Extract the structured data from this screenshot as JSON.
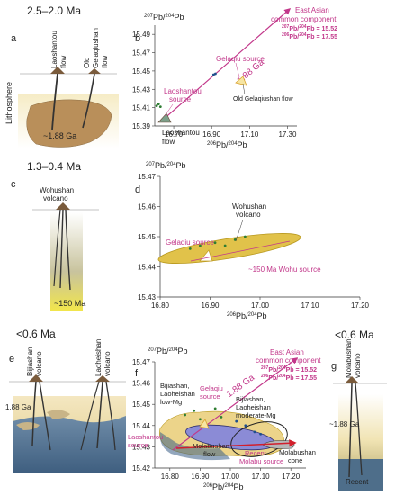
{
  "age_labels": {
    "a": "2.5–2.0 Ma",
    "c": "1.3–0.4 Ma",
    "e": "<0.6 Ma",
    "g": "<0.6 Ma"
  },
  "panel_letters": {
    "a": "a",
    "b": "b",
    "c": "c",
    "d": "d",
    "e": "e",
    "f": "f",
    "g": "g"
  },
  "panel_a": {
    "volcano_left": "Laoshantou flow",
    "volcano_left_l1": "Laoshantou",
    "volcano_left_l2": "flow",
    "volcano_right_l1": "Old",
    "volcano_right_l2": "Gelaqiushan",
    "volcano_right_l3": "flow",
    "lithosphere": "Lithosphere",
    "age": "~1.88 Ga"
  },
  "panel_c": {
    "volcano_l1": "Wohushan",
    "volcano_l2": "volcano",
    "age": "~150 Ma"
  },
  "panel_e": {
    "volcano_left_l1": "Bijiashan",
    "volcano_left_l2": "volcano",
    "volcano_right_l1": "Laoheishan",
    "volcano_right_l2": "volcano",
    "age": "1.88 Ga"
  },
  "panel_g": {
    "volcano_l1": "Molabushan",
    "volcano_l2": "volcano",
    "age": "~1.88 Ga",
    "recent": "Recent"
  },
  "chart_data": [
    {
      "panel": "b",
      "type": "scatter",
      "ylabel_pre": "207",
      "ylabel_mid": "Pb/",
      "ylabel_sup2": "204",
      "ylabel_post": "Pb",
      "xlabel_pre": "206",
      "xlabel_mid": "Pb/",
      "xlabel_sup2": "204",
      "xlabel_post": "Pb",
      "xlim": [
        16.6,
        17.35
      ],
      "ylim": [
        15.39,
        15.5
      ],
      "xticks": [
        "16.70",
        "16.90",
        "17.10",
        "17.30"
      ],
      "yticks": [
        "15.49",
        "15.47",
        "15.45",
        "15.43",
        "15.41",
        "15.39"
      ],
      "annotations": {
        "ea_l1": "East Asian",
        "ea_l2": "common component",
        "ea_r1": "Pb/",
        "ea_r1b": "Pb = 15.52",
        "ea_r2": "Pb/",
        "ea_r2b": "Pb = 17.55",
        "ea_s207": "207",
        "ea_s204": "204",
        "ea_s206": "206",
        "ga": "1.88 Ga",
        "gelaqiu_source": "Gelaqiu source",
        "laoshantou_source_l1": "Laoshantou",
        "laoshantou_source_l2": "source",
        "old_gelaqiushan": "Old Gelaqiushan flow",
        "laoshantou_flow_l1": "Laoshantou",
        "laoshantou_flow_l2": "flow"
      },
      "series": [
        {
          "points": [
            [
              16.61,
              15.412
            ],
            [
              16.62,
              15.414
            ],
            [
              16.63,
              15.411
            ]
          ]
        },
        {
          "points": [
            [
              16.91,
              15.446
            ],
            [
              16.92,
              15.447
            ]
          ]
        }
      ]
    },
    {
      "panel": "d",
      "type": "scatter",
      "ylabel_pre": "207",
      "ylabel_mid": "Pb/",
      "ylabel_sup2": "204",
      "ylabel_post": "Pb",
      "xlabel_pre": "206",
      "xlabel_mid": "Pb/",
      "xlabel_sup2": "204",
      "xlabel_post": "Pb",
      "xlim": [
        16.8,
        17.2
      ],
      "ylim": [
        15.43,
        15.47
      ],
      "xticks": [
        "16.80",
        "16.90",
        "17.00",
        "17.10",
        "17.20"
      ],
      "yticks": [
        "15.47",
        "15.46",
        "15.45",
        "15.44",
        "15.43"
      ],
      "annotations": {
        "wohu_l1": "Wohushan",
        "wohu_l2": "volcano",
        "gelaqiu_source": "Gelaqiu source",
        "wohu_source": "~150 Ma Wohu source"
      },
      "series": [
        {
          "points": [
            [
              16.86,
              15.446
            ],
            [
              16.88,
              15.447
            ],
            [
              16.91,
              15.448
            ],
            [
              16.95,
              15.449
            ],
            [
              16.97,
              15.45
            ],
            [
              16.93,
              15.447
            ]
          ]
        }
      ]
    },
    {
      "panel": "f",
      "type": "scatter",
      "ylabel_pre": "207",
      "ylabel_mid": "Pb/",
      "ylabel_sup2": "204",
      "ylabel_post": "Pb",
      "xlabel_pre": "206",
      "xlabel_mid": "Pb/",
      "xlabel_sup2": "204",
      "xlabel_post": "Pb",
      "xlim": [
        16.75,
        17.25
      ],
      "ylim": [
        15.42,
        15.47
      ],
      "xticks": [
        "16.80",
        "16.90",
        "17.00",
        "17.10",
        "17.20"
      ],
      "yticks": [
        "15.47",
        "15.46",
        "15.45",
        "15.44",
        "15.43",
        "15.42"
      ],
      "annotations": {
        "ea_l1": "East Asian",
        "ea_l2": "common component",
        "ea_r1": "Pb/",
        "ea_r1b": "Pb = 15.52",
        "ea_r2": "Pb/",
        "ea_r2b": "Pb = 17.55",
        "ea_s207": "207",
        "ea_s204": "204",
        "ea_s206": "206",
        "ga": "1.88 Ga",
        "lowmg_l1": "Bijiashan,",
        "lowmg_l2": "Laoheishan",
        "lowmg_l3": "low-Mg",
        "gelaqiu_l1": "Gelaqiu",
        "gelaqiu_l2": "source",
        "modmg_l1": "Bijiashan,",
        "modmg_l2": "Laoheishan",
        "modmg_l3": "moderate-Mg",
        "laoshantou_l1": "Laoshantou",
        "laoshantou_l2": "source",
        "molabushan_flow_l1": "Molabushan",
        "molabushan_flow_l2": "flow",
        "recent_l1": "Recent",
        "recent_l2": "Molabu source",
        "molabushan_cone_l1": "Molabushan",
        "molabushan_cone_l2": "cone"
      },
      "series": [
        {
          "points": [
            [
              16.85,
              15.445
            ],
            [
              16.88,
              15.447
            ],
            [
              16.9,
              15.443
            ],
            [
              16.95,
              15.448
            ],
            [
              16.97,
              15.444
            ]
          ]
        },
        {
          "points": [
            [
              17.02,
              15.442
            ],
            [
              17.05,
              15.44
            ],
            [
              17.08,
              15.437
            ],
            [
              17.1,
              15.436
            ]
          ]
        }
      ]
    }
  ]
}
